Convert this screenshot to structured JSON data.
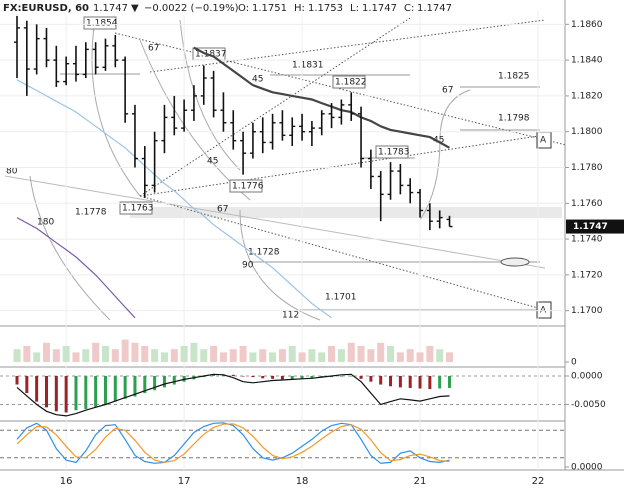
{
  "chart_data": [
    {
      "type": "ohlc",
      "header": {
        "symbol": "FX:EURUSD, 60",
        "last": "1.1747",
        "arrow": "▼",
        "change": "−0.0022 (−0.19%)",
        "o_label": "O:",
        "open": "1.1751",
        "h_label": "H:",
        "high": "1.1753",
        "l_label": "L:",
        "low": "1.1747",
        "c_label": "C:",
        "close": "1.1747"
      },
      "categories": [
        null,
        null,
        null,
        null,
        null,
        "16",
        null,
        null,
        null,
        null,
        null,
        null,
        null,
        null,
        null,
        null,
        null,
        "17",
        null,
        null,
        null,
        null,
        null,
        null,
        null,
        null,
        null,
        null,
        null,
        "18",
        null,
        null,
        null,
        null,
        null,
        null,
        null,
        null,
        null,
        null,
        null,
        "21",
        null,
        null,
        null,
        null,
        null,
        null,
        null,
        null,
        null,
        null,
        null,
        "22",
        null,
        null
      ],
      "open": [
        1.185,
        1.1858,
        1.1835,
        1.1852,
        1.184,
        1.1828,
        1.1838,
        1.1832,
        1.1846,
        1.1836,
        1.1848,
        1.184,
        1.181,
        1.1785,
        1.177,
        1.1795,
        1.1808,
        1.1802,
        1.1812,
        1.182,
        1.183,
        1.1812,
        1.1805,
        1.1795,
        1.1788,
        1.18,
        1.1794,
        1.1805,
        1.1798,
        1.1803,
        1.18,
        1.1802,
        1.181,
        1.1808,
        1.1815,
        1.181,
        1.1785,
        1.1775,
        1.1765,
        1.1778,
        1.177,
        1.1766,
        1.1756,
        1.175,
        1.1751,
        null,
        null,
        null,
        null,
        null,
        null,
        null,
        null,
        null,
        null,
        null
      ],
      "high": [
        1.1866,
        1.1862,
        1.186,
        1.1858,
        1.1848,
        1.1842,
        1.1848,
        1.185,
        1.185,
        1.1852,
        1.1854,
        1.1842,
        1.1815,
        1.1792,
        1.18,
        1.1815,
        1.182,
        1.1818,
        1.1826,
        1.1837,
        1.1834,
        1.1822,
        1.1812,
        1.18,
        1.1805,
        1.1808,
        1.181,
        1.1812,
        1.1808,
        1.181,
        1.1806,
        1.1812,
        1.1816,
        1.1818,
        1.1822,
        1.1814,
        1.179,
        1.1778,
        1.1783,
        1.1782,
        1.1774,
        1.1768,
        1.176,
        1.1756,
        1.1753,
        null,
        null,
        null,
        null,
        null,
        null,
        null,
        null,
        null,
        null,
        null
      ],
      "low": [
        1.183,
        1.182,
        1.1832,
        1.1836,
        1.1825,
        1.1826,
        1.1828,
        1.183,
        1.1832,
        1.1834,
        1.1836,
        1.1805,
        1.178,
        1.1763,
        1.1766,
        1.1788,
        1.1798,
        1.18,
        1.1806,
        1.1815,
        1.1808,
        1.18,
        1.179,
        1.1776,
        1.1785,
        1.1788,
        1.179,
        1.1795,
        1.1792,
        1.1795,
        1.1792,
        1.1798,
        1.1802,
        1.1804,
        1.1806,
        1.178,
        1.1768,
        1.175,
        1.1762,
        1.1765,
        1.176,
        1.1752,
        1.1745,
        1.1746,
        1.1747,
        null,
        null,
        null,
        null,
        null,
        null,
        null,
        null,
        null,
        null,
        null
      ],
      "close": [
        1.1858,
        1.1835,
        1.1852,
        1.184,
        1.1828,
        1.1838,
        1.1832,
        1.1846,
        1.1836,
        1.1848,
        1.184,
        1.181,
        1.1785,
        1.177,
        1.1795,
        1.1808,
        1.1802,
        1.1812,
        1.182,
        1.183,
        1.1812,
        1.1805,
        1.1795,
        1.1788,
        1.18,
        1.1794,
        1.1805,
        1.1798,
        1.1803,
        1.18,
        1.1802,
        1.181,
        1.1808,
        1.1815,
        1.181,
        1.1785,
        1.1775,
        1.1765,
        1.1778,
        1.177,
        1.1766,
        1.1756,
        1.175,
        1.1752,
        1.1747,
        null,
        null,
        null,
        null,
        null,
        null,
        null,
        null,
        null,
        null,
        null
      ],
      "color": "#111111",
      "series": [
        {
          "color": "#9cc3e4",
          "values": [
            1.1829,
            1.1826,
            1.1823,
            1.182,
            1.1817,
            1.1814,
            1.1811,
            1.1807,
            1.1803,
            1.1799,
            1.1795,
            1.1791,
            1.1786,
            1.1781,
            1.1776,
            1.1771,
            1.1767,
            1.1762,
            1.1757,
            1.1753,
            1.1748,
            1.1744,
            1.174,
            1.1736,
            1.1732,
            1.1728,
            1.1724,
            1.1719,
            1.1714,
            1.1709,
            1.1704,
            1.17,
            1.1696,
            null,
            null,
            null,
            null,
            null,
            null,
            null,
            null,
            null,
            null,
            null,
            null,
            null,
            null,
            null,
            null,
            null,
            null,
            null,
            null,
            null,
            null,
            null
          ]
        },
        {
          "color": "#7c5aa6",
          "values": [
            1.1752,
            1.1749,
            1.1746,
            1.1742,
            1.1738,
            1.1734,
            1.173,
            1.1725,
            1.172,
            1.1714,
            1.1708,
            1.1702,
            1.1696,
            null,
            null,
            null,
            null,
            null,
            null,
            null,
            null,
            null,
            null,
            null,
            null,
            null,
            null,
            null,
            null,
            null,
            null,
            null,
            null,
            null,
            null,
            null,
            null,
            null,
            null,
            null,
            null,
            null,
            null,
            null,
            null,
            null,
            null,
            null,
            null,
            null,
            null,
            null,
            null,
            null,
            null,
            null
          ]
        },
        {
          "color": "#454545",
          "values": [
            null,
            null,
            null,
            null,
            null,
            null,
            null,
            null,
            null,
            null,
            null,
            null,
            null,
            null,
            null,
            null,
            null,
            null,
            1.1847,
            1.1844,
            1.1842,
            1.1838,
            1.1834,
            1.183,
            1.1826,
            1.1824,
            1.1822,
            1.1821,
            1.182,
            1.1819,
            1.1818,
            1.1816,
            1.1814,
            1.1812,
            1.1811,
            1.1808,
            1.1806,
            1.1803,
            1.1801,
            1.18,
            1.1799,
            1.1798,
            1.1797,
            1.1794,
            1.1791,
            null,
            null,
            null,
            null,
            null,
            null,
            null,
            null,
            null,
            null,
            null
          ]
        }
      ],
      "ylim": [
        1.1692,
        1.1868
      ],
      "yticks": [
        {
          "value": 1.17,
          "label": "1.1700"
        },
        {
          "value": 1.172,
          "label": "1.1720"
        },
        {
          "value": 1.174,
          "label": "1.1740"
        },
        {
          "value": 1.176,
          "label": "1.1760"
        },
        {
          "value": 1.178,
          "label": "1.1780"
        },
        {
          "value": 1.18,
          "label": "1.1800"
        },
        {
          "value": 1.182,
          "label": "1.1820"
        },
        {
          "value": 1.184,
          "label": "1.1840"
        },
        {
          "value": 1.186,
          "label": "1.1860"
        }
      ],
      "last_price": {
        "value": 1.1747,
        "label": "1.1747"
      },
      "grid": true,
      "annotations": [
        "1.1854",
        "67",
        "1.1837",
        "1.1831",
        "45",
        "1.1822",
        "1.1825",
        "67",
        "1.1798",
        "45",
        "1.1783",
        "80",
        "45",
        "1.1776",
        "1.1778",
        "1.1763",
        "67",
        "180",
        "1.1728",
        "90",
        "1.1701",
        "112",
        "A",
        "A"
      ]
    },
    {
      "type": "volume",
      "up_color": "#c9e5c9",
      "down_color": "#f0c9c9",
      "values": [
        4,
        5,
        3,
        6,
        4,
        5,
        3,
        4,
        6,
        5,
        4,
        7,
        6,
        5,
        4,
        3,
        4,
        5,
        6,
        4,
        5,
        3,
        4,
        5,
        3,
        4,
        3,
        4,
        5,
        3,
        4,
        3,
        5,
        4,
        6,
        5,
        4,
        6,
        5,
        3,
        4,
        3,
        5,
        4,
        3,
        null,
        null,
        null,
        null,
        null,
        null,
        null,
        null,
        null,
        null,
        null
      ],
      "ylim": [
        0,
        10
      ],
      "yticks": [
        0
      ]
    },
    {
      "type": "histogram",
      "up_color": "#2e9e4f",
      "down_color": "#9b2226",
      "values": [
        -0.0015,
        -0.003,
        -0.0045,
        -0.0055,
        -0.0062,
        -0.0064,
        -0.006,
        -0.0058,
        -0.0055,
        -0.005,
        -0.0045,
        -0.004,
        -0.0036,
        -0.003,
        -0.0025,
        -0.002,
        -0.0015,
        -0.001,
        -0.0006,
        -0.0002,
        0.0002,
        0.0003,
        0.0002,
        0,
        -0.0002,
        -0.0004,
        -0.0005,
        -0.0006,
        -0.0006,
        -0.0005,
        -0.0004,
        -0.0003,
        -0.0002,
        -0.0001,
        0,
        -0.0005,
        -0.001,
        -0.0015,
        -0.0018,
        -0.002,
        -0.0021,
        -0.0022,
        -0.0023,
        -0.0022,
        -0.0021,
        null,
        null,
        null,
        null,
        null,
        null,
        null,
        null,
        null,
        null,
        null
      ],
      "series": [
        {
          "color": "#111111",
          "values": [
            -0.002,
            -0.0035,
            -0.005,
            -0.0062,
            -0.0068,
            -0.007,
            -0.0066,
            -0.006,
            -0.0055,
            -0.005,
            -0.0044,
            -0.0038,
            -0.0032,
            -0.0026,
            -0.002,
            -0.0014,
            -0.001,
            -0.0006,
            -0.0003,
            0,
            0.0003,
            0.0002,
            -0.0003,
            -0.001,
            -0.0012,
            -0.001,
            -0.0008,
            -0.0007,
            -0.0006,
            -0.0005,
            -0.0004,
            -0.0002,
            0,
            0.0002,
            0.0003,
            -0.001,
            -0.003,
            -0.005,
            -0.0045,
            -0.004,
            -0.0042,
            -0.0044,
            -0.004,
            -0.0036,
            -0.0035,
            null,
            null,
            null,
            null,
            null,
            null,
            null,
            null,
            null,
            null,
            null
          ]
        }
      ],
      "ylim": [
        -0.0079,
        0.0014
      ],
      "yticks": [
        {
          "value": 0,
          "label": "0.0000"
        },
        {
          "value": -0.005,
          "label": "-0.0050"
        }
      ]
    },
    {
      "type": "line",
      "series": [
        {
          "color": "#2f8fe8",
          "values": [
            60,
            85,
            95,
            80,
            40,
            15,
            10,
            35,
            70,
            90,
            92,
            60,
            25,
            12,
            8,
            10,
            25,
            50,
            75,
            88,
            95,
            96,
            90,
            70,
            40,
            20,
            15,
            20,
            30,
            45,
            60,
            78,
            90,
            95,
            92,
            60,
            25,
            8,
            10,
            30,
            35,
            20,
            12,
            10,
            15,
            null,
            null,
            null,
            null,
            null,
            null,
            null,
            null,
            null,
            null,
            null
          ]
        },
        {
          "color": "#f39a2b",
          "values": [
            50,
            70,
            88,
            87,
            70,
            45,
            22,
            20,
            38,
            65,
            84,
            80,
            58,
            32,
            15,
            10,
            14,
            28,
            50,
            71,
            86,
            93,
            94,
            85,
            67,
            43,
            25,
            18,
            22,
            32,
            45,
            61,
            76,
            88,
            92,
            82,
            59,
            31,
            14,
            16,
            25,
            28,
            22,
            14,
            12,
            null,
            null,
            null,
            null,
            null,
            null,
            null,
            null,
            null,
            null,
            null
          ]
        }
      ],
      "levels": [
        20,
        80
      ],
      "ylim": [
        0,
        100
      ],
      "yticks": [
        {
          "value": 0,
          "label": "0.0000"
        }
      ]
    }
  ]
}
